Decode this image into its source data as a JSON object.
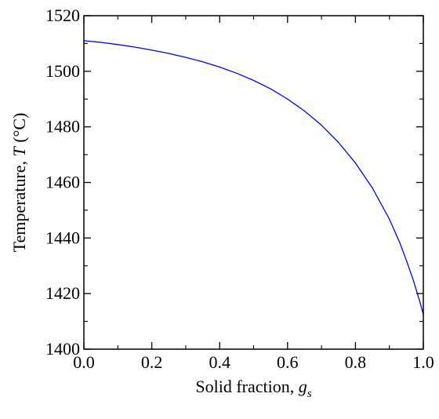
{
  "chart_data": {
    "type": "line",
    "title": "",
    "xlabel": "Solid fraction, ",
    "xlabel_symbol": "g",
    "xlabel_subscript": "s",
    "ylabel": "Temperature, ",
    "ylabel_symbol": "T",
    "ylabel_unit": " (°C)",
    "xlim": [
      0.0,
      1.0
    ],
    "ylim": [
      1400,
      1520
    ],
    "xticks": [
      "0.0",
      "0.2",
      "0.4",
      "0.6",
      "0.8",
      "1.0"
    ],
    "yticks": [
      "1400",
      "1420",
      "1440",
      "1460",
      "1480",
      "1500",
      "1520"
    ],
    "grid": false,
    "legend": "none",
    "series": [
      {
        "color": "#0000ff",
        "x": [
          0.0,
          0.05,
          0.1,
          0.15,
          0.2,
          0.25,
          0.3,
          0.35,
          0.4,
          0.45,
          0.5,
          0.55,
          0.6,
          0.65,
          0.7,
          0.75,
          0.8,
          0.85,
          0.9,
          0.93,
          0.95,
          0.97,
          0.98,
          0.99,
          1.0
        ],
        "y": [
          1511.0,
          1510.4,
          1509.6,
          1508.7,
          1507.6,
          1506.4,
          1505.0,
          1503.4,
          1501.5,
          1499.3,
          1496.7,
          1493.7,
          1490.0,
          1485.7,
          1480.6,
          1474.4,
          1467.0,
          1458.0,
          1446.8,
          1438.5,
          1432.0,
          1425.0,
          1421.0,
          1417.0,
          1412.5
        ]
      }
    ]
  }
}
